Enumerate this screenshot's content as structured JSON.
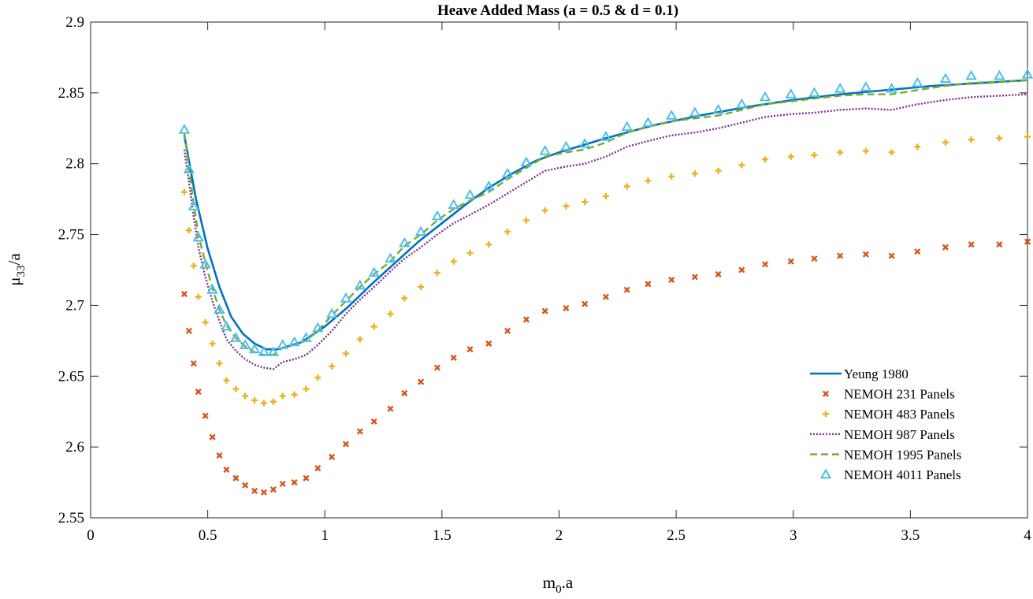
{
  "chart_data": {
    "type": "line",
    "title": "Heave Added Mass (a = 0.5 & d = 0.1)",
    "xlabel": {
      "base": "m",
      "sub": "0",
      "rest": ".a"
    },
    "ylabel": {
      "base": "μ",
      "sub": "33",
      "rest": "/a"
    },
    "xlim": [
      0,
      4
    ],
    "ylim": [
      2.55,
      2.9
    ],
    "xticks": [
      0,
      0.5,
      1,
      1.5,
      2,
      2.5,
      3,
      3.5,
      4
    ],
    "xtick_labels": [
      "0",
      "0.5",
      "1",
      "1.5",
      "2",
      "2.5",
      "3",
      "3.5",
      "4"
    ],
    "yticks": [
      2.55,
      2.6,
      2.65,
      2.7,
      2.75,
      2.8,
      2.85,
      2.9
    ],
    "ytick_labels": [
      "2.55",
      "2.6",
      "2.65",
      "2.7",
      "2.75",
      "2.8",
      "2.85",
      "2.9"
    ],
    "grid": false,
    "legend_position": "bottom-right",
    "x": [
      0.4,
      0.42,
      0.44,
      0.46,
      0.49,
      0.52,
      0.55,
      0.58,
      0.62,
      0.66,
      0.7,
      0.74,
      0.78,
      0.82,
      0.87,
      0.92,
      0.97,
      1.03,
      1.09,
      1.15,
      1.21,
      1.28,
      1.34,
      1.41,
      1.48,
      1.55,
      1.62,
      1.7,
      1.78,
      1.86,
      1.94,
      2.03,
      2.11,
      2.2,
      2.29,
      2.38,
      2.48,
      2.58,
      2.68,
      2.78,
      2.88,
      2.99,
      3.09,
      3.2,
      3.31,
      3.42,
      3.53,
      3.65,
      3.76,
      3.88,
      4.0
    ],
    "series": [
      {
        "name": "Yeung 1980",
        "style": "solid",
        "color": "#0072bd",
        "x": [
          0.4,
          0.45,
          0.5,
          0.55,
          0.6,
          0.65,
          0.7,
          0.75,
          0.8,
          0.9,
          1.0,
          1.1,
          1.2,
          1.3,
          1.4,
          1.5,
          1.6,
          1.7,
          1.8,
          1.9,
          2.0,
          2.2,
          2.4,
          2.6,
          2.8,
          3.0,
          3.2,
          3.4,
          3.6,
          3.8,
          4.0
        ],
        "values": [
          2.82,
          2.775,
          2.74,
          2.713,
          2.692,
          2.68,
          2.673,
          2.669,
          2.669,
          2.674,
          2.685,
          2.699,
          2.715,
          2.73,
          2.745,
          2.758,
          2.771,
          2.783,
          2.793,
          2.802,
          2.808,
          2.818,
          2.827,
          2.834,
          2.84,
          2.845,
          2.849,
          2.852,
          2.855,
          2.857,
          2.859
        ]
      },
      {
        "name": "NEMOH 231 Panels",
        "style": "x-marker",
        "color": "#d95319",
        "values": [
          2.708,
          2.682,
          2.659,
          2.639,
          2.622,
          2.607,
          2.594,
          2.584,
          2.578,
          2.573,
          2.569,
          2.568,
          2.57,
          2.574,
          2.575,
          2.578,
          2.585,
          2.593,
          2.602,
          2.611,
          2.618,
          2.627,
          2.638,
          2.646,
          2.656,
          2.663,
          2.669,
          2.673,
          2.682,
          2.69,
          2.696,
          2.698,
          2.701,
          2.706,
          2.711,
          2.715,
          2.718,
          2.72,
          2.722,
          2.725,
          2.729,
          2.731,
          2.733,
          2.735,
          2.736,
          2.735,
          2.738,
          2.741,
          2.743,
          2.743,
          2.745
        ]
      },
      {
        "name": "NEMOH 483 Panels",
        "style": "plus-marker",
        "color": "#edb120",
        "values": [
          2.78,
          2.753,
          2.728,
          2.706,
          2.688,
          2.673,
          2.659,
          2.647,
          2.641,
          2.636,
          2.633,
          2.631,
          2.632,
          2.636,
          2.637,
          2.641,
          2.649,
          2.657,
          2.666,
          2.676,
          2.685,
          2.694,
          2.705,
          2.713,
          2.723,
          2.731,
          2.737,
          2.743,
          2.752,
          2.76,
          2.767,
          2.77,
          2.773,
          2.777,
          2.784,
          2.788,
          2.791,
          2.793,
          2.795,
          2.799,
          2.803,
          2.805,
          2.806,
          2.808,
          2.809,
          2.808,
          2.812,
          2.815,
          2.817,
          2.818,
          2.819
        ]
      },
      {
        "name": "NEMOH 987 Panels",
        "style": "dotted",
        "color": "#7e2f8e",
        "values": [
          2.81,
          2.787,
          2.763,
          2.741,
          2.72,
          2.703,
          2.689,
          2.676,
          2.668,
          2.662,
          2.658,
          2.656,
          2.655,
          2.66,
          2.662,
          2.665,
          2.672,
          2.682,
          2.694,
          2.704,
          2.713,
          2.724,
          2.733,
          2.741,
          2.75,
          2.758,
          2.764,
          2.771,
          2.779,
          2.787,
          2.795,
          2.798,
          2.8,
          2.805,
          2.812,
          2.816,
          2.82,
          2.822,
          2.825,
          2.829,
          2.833,
          2.835,
          2.836,
          2.838,
          2.839,
          2.838,
          2.842,
          2.845,
          2.847,
          2.848,
          2.849
        ]
      },
      {
        "name": "NEMOH 1995 Panels",
        "style": "dashed",
        "color": "#77ac30",
        "values": [
          2.822,
          2.797,
          2.772,
          2.75,
          2.73,
          2.712,
          2.697,
          2.686,
          2.677,
          2.671,
          2.667,
          2.665,
          2.665,
          2.67,
          2.672,
          2.675,
          2.682,
          2.693,
          2.703,
          2.713,
          2.722,
          2.731,
          2.742,
          2.75,
          2.76,
          2.768,
          2.774,
          2.78,
          2.789,
          2.797,
          2.805,
          2.808,
          2.81,
          2.815,
          2.822,
          2.826,
          2.83,
          2.832,
          2.834,
          2.838,
          2.842,
          2.844,
          2.846,
          2.848,
          2.849,
          2.849,
          2.852,
          2.855,
          2.857,
          2.858,
          2.859
        ]
      },
      {
        "name": "NEMOH 4011 Panels",
        "style": "triangle-marker",
        "color": "#4dbeee",
        "values": [
          2.824,
          2.796,
          2.77,
          2.748,
          2.729,
          2.711,
          2.697,
          2.685,
          2.677,
          2.672,
          2.669,
          2.667,
          2.667,
          2.672,
          2.674,
          2.677,
          2.684,
          2.694,
          2.705,
          2.714,
          2.723,
          2.733,
          2.744,
          2.752,
          2.763,
          2.771,
          2.778,
          2.784,
          2.793,
          2.801,
          2.809,
          2.812,
          2.814,
          2.819,
          2.826,
          2.829,
          2.834,
          2.836,
          2.838,
          2.842,
          2.847,
          2.849,
          2.85,
          2.853,
          2.854,
          2.853,
          2.857,
          2.86,
          2.862,
          2.862,
          2.863
        ]
      }
    ]
  }
}
